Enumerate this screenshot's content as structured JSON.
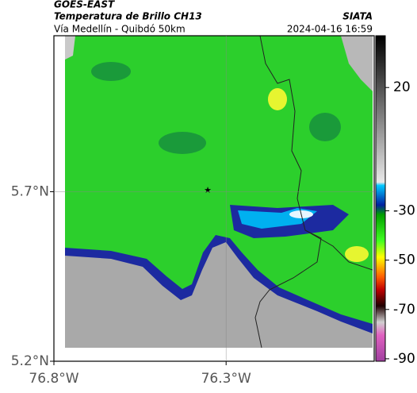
{
  "header": {
    "title": "GOES-EAST",
    "subtitle": "Temperatura de Brillo CH13",
    "route": "Vía Medellín - Quibdó 50km",
    "source": "SIATA",
    "timestamp": "2024-04-16 16:59"
  },
  "map": {
    "lat_range": [
      5.2,
      6.16
    ],
    "lon_range": [
      -76.8,
      -75.87
    ],
    "lat_ticks": [
      {
        "value": 5.7,
        "label": "5.7°N"
      },
      {
        "value": 5.2,
        "label": "5.2°N"
      }
    ],
    "lon_ticks": [
      {
        "value": -76.8,
        "label": "76.8°W"
      },
      {
        "value": -76.3,
        "label": "76.3°W"
      }
    ]
  },
  "colorbar": {
    "range": [
      41,
      -91
    ],
    "ticks": [
      20,
      -30,
      -50,
      -70,
      -90
    ]
  }
}
